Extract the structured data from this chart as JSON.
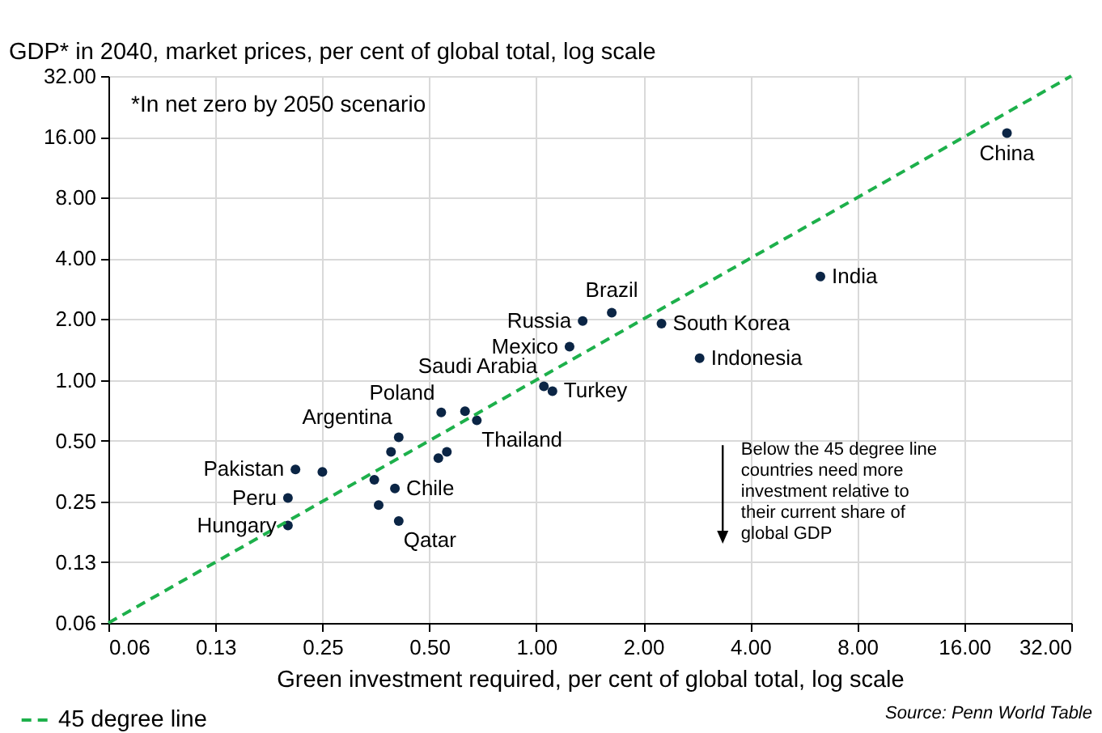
{
  "chart_data": {
    "type": "scatter",
    "ylabel": "GDP* in 2040, market prices, per cent of global total, log scale",
    "xlabel": "Green investment required, per cent of global total, log scale",
    "log": "xy",
    "grid": true,
    "legend": "bottom left",
    "xlim": [
      0.0625,
      32
    ],
    "ylim": [
      0.0625,
      32
    ],
    "xticks": [
      {
        "value": 0.0625,
        "label": "0.06"
      },
      {
        "value": 0.125,
        "label": "0.13"
      },
      {
        "value": 0.25,
        "label": "0.25"
      },
      {
        "value": 0.5,
        "label": "0.50"
      },
      {
        "value": 1,
        "label": "1.00"
      },
      {
        "value": 2,
        "label": "2.00"
      },
      {
        "value": 4,
        "label": "4.00"
      },
      {
        "value": 8,
        "label": "8.00"
      },
      {
        "value": 16,
        "label": "16.00"
      },
      {
        "value": 32,
        "label": "32.00"
      }
    ],
    "yticks": [
      {
        "value": 0.0625,
        "label": "0.06"
      },
      {
        "value": 0.125,
        "label": "0.13"
      },
      {
        "value": 0.25,
        "label": "0.25"
      },
      {
        "value": 0.5,
        "label": "0.50"
      },
      {
        "value": 1,
        "label": "1.00"
      },
      {
        "value": 2,
        "label": "2.00"
      },
      {
        "value": 4,
        "label": "4.00"
      },
      {
        "value": 8,
        "label": "8.00"
      },
      {
        "value": 16,
        "label": "16.00"
      },
      {
        "value": 32,
        "label": "32.00"
      }
    ],
    "series": [
      {
        "marker": "circle",
        "color": "#0b2545",
        "x": [
          21.1,
          6.3,
          1.63,
          1.35,
          2.25,
          1.24,
          2.88,
          1.05,
          1.11,
          0.54,
          0.63,
          0.68,
          0.41,
          0.39,
          0.56,
          0.53,
          0.21,
          0.25,
          0.35,
          0.4,
          0.2,
          0.36,
          0.41,
          0.2
        ],
        "values": [
          16.7,
          3.25,
          2.15,
          1.96,
          1.9,
          1.46,
          1.28,
          0.93,
          0.88,
          0.69,
          0.7,
          0.63,
          0.52,
          0.44,
          0.44,
          0.41,
          0.36,
          0.35,
          0.32,
          0.29,
          0.26,
          0.24,
          0.2,
          0.19
        ]
      },
      {
        "type": "line",
        "name": "45 degree line",
        "color": "#1db04b",
        "line_style": "dashed",
        "x": [
          0.0625,
          32
        ],
        "values": [
          0.0625,
          32
        ]
      }
    ],
    "annotations": [
      "*In net zero by 2050 scenario",
      "Below the 45 degree line countries need more investment relative to their current share of global GDP",
      "Source: Penn World Table",
      {
        "text": "China",
        "x": 21.1,
        "y": 16.7
      },
      {
        "text": "India",
        "x": 6.3,
        "y": 3.25
      },
      {
        "text": "Brazil",
        "x": 1.63,
        "y": 2.15
      },
      {
        "text": "Russia",
        "x": 1.35,
        "y": 1.96
      },
      {
        "text": "South Korea",
        "x": 2.25,
        "y": 1.9
      },
      {
        "text": "Mexico",
        "x": 1.24,
        "y": 1.46
      },
      {
        "text": "Indonesia",
        "x": 2.88,
        "y": 1.28
      },
      {
        "text": "Saudi Arabia",
        "x": 1.05,
        "y": 0.93
      },
      {
        "text": "Turkey",
        "x": 1.11,
        "y": 0.88
      },
      {
        "text": "Poland",
        "x": 0.54,
        "y": 0.69
      },
      {
        "text": "Thailand",
        "x": 0.68,
        "y": 0.63
      },
      {
        "text": "Argentina",
        "x": 0.41,
        "y": 0.52
      },
      {
        "text": "Pakistan",
        "x": 0.21,
        "y": 0.36
      },
      {
        "text": "Chile",
        "x": 0.4,
        "y": 0.29
      },
      {
        "text": "Peru",
        "x": 0.2,
        "y": 0.26
      },
      {
        "text": "Qatar",
        "x": 0.41,
        "y": 0.2
      },
      {
        "text": "Hungary",
        "x": 0.2,
        "y": 0.19
      }
    ]
  }
}
